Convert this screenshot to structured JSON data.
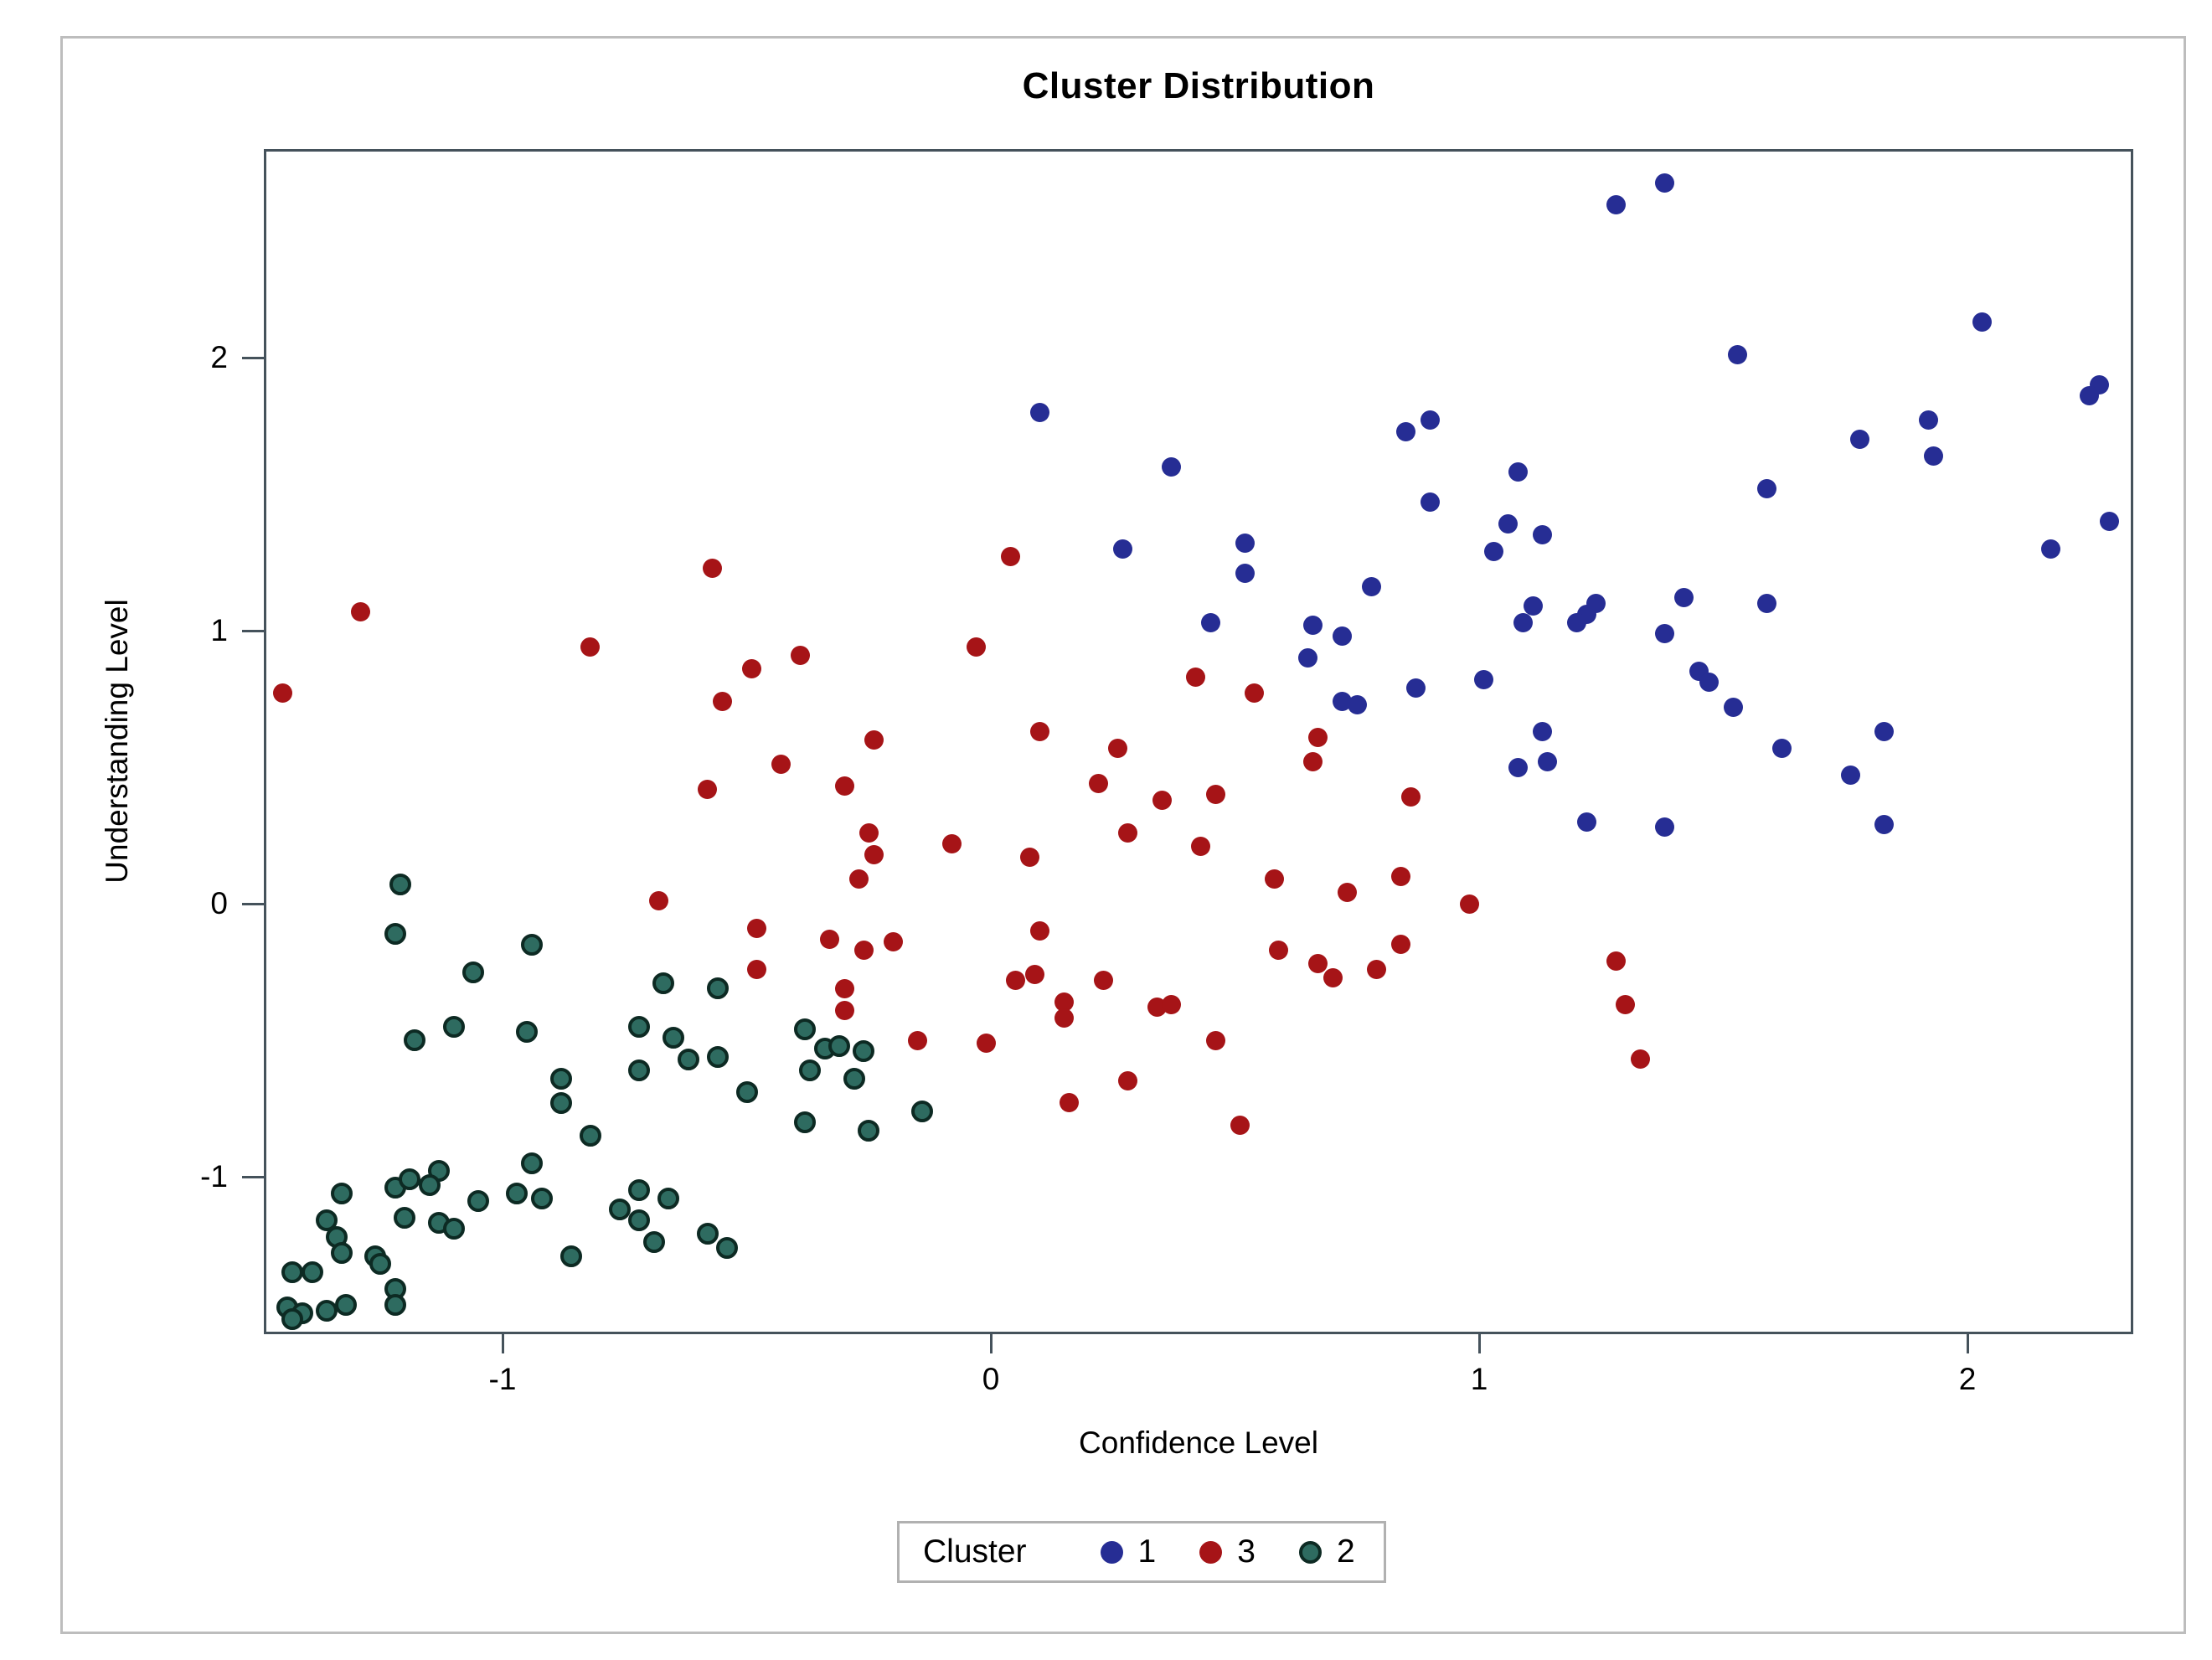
{
  "page": {
    "background": "#ffffff",
    "outer_border_color": "#bdbdbd",
    "frame_color": "#45525B"
  },
  "chart": {
    "title": "Cluster Distribution",
    "xlabel": "Confidence Level",
    "ylabel": "Understanding Level"
  },
  "legend": {
    "title": "Cluster"
  },
  "chart_data": {
    "type": "scatter",
    "title": "Cluster Distribution",
    "xlabel": "Confidence Level",
    "ylabel": "Understanding Level",
    "xlim": [
      -1.48,
      2.35
    ],
    "ylim": [
      -1.59,
      2.76
    ],
    "x_ticks": [
      -1,
      0,
      1,
      2
    ],
    "y_ticks": [
      -1,
      0,
      1,
      2
    ],
    "grid": false,
    "legend_title": "Cluster",
    "legend_position": "bottom-center",
    "marker_diameter_px": 23,
    "series": [
      {
        "name": "1",
        "color": "#262D94",
        "points": [
          [
            0.1,
            1.8
          ],
          [
            0.37,
            1.6
          ],
          [
            0.85,
            1.73
          ],
          [
            0.9,
            1.77
          ],
          [
            0.9,
            1.47
          ],
          [
            0.27,
            1.3
          ],
          [
            0.52,
            1.32
          ],
          [
            0.52,
            1.21
          ],
          [
            0.78,
            1.16
          ],
          [
            0.45,
            1.03
          ],
          [
            0.66,
            1.02
          ],
          [
            0.72,
            0.98
          ],
          [
            0.65,
            0.9
          ],
          [
            0.87,
            0.79
          ],
          [
            1.01,
            0.82
          ],
          [
            1.03,
            1.29
          ],
          [
            0.72,
            0.74
          ],
          [
            0.75,
            0.73
          ],
          [
            1.38,
            2.64
          ],
          [
            1.28,
            2.56
          ],
          [
            2.03,
            2.13
          ],
          [
            1.53,
            2.01
          ],
          [
            2.27,
            1.9
          ],
          [
            2.25,
            1.86
          ],
          [
            1.92,
            1.77
          ],
          [
            1.78,
            1.7
          ],
          [
            1.93,
            1.64
          ],
          [
            1.59,
            1.52
          ],
          [
            1.08,
            1.58
          ],
          [
            1.06,
            1.39
          ],
          [
            1.13,
            1.35
          ],
          [
            2.17,
            1.3
          ],
          [
            2.29,
            1.4
          ],
          [
            1.59,
            1.1
          ],
          [
            1.24,
            1.1
          ],
          [
            1.22,
            1.06
          ],
          [
            1.11,
            1.09
          ],
          [
            1.09,
            1.03
          ],
          [
            1.2,
            1.03
          ],
          [
            1.42,
            1.12
          ],
          [
            1.38,
            0.99
          ],
          [
            1.45,
            0.85
          ],
          [
            1.47,
            0.81
          ],
          [
            1.52,
            0.72
          ],
          [
            1.13,
            0.63
          ],
          [
            1.08,
            0.5
          ],
          [
            1.14,
            0.52
          ],
          [
            1.62,
            0.57
          ],
          [
            1.83,
            0.63
          ],
          [
            1.76,
            0.47
          ],
          [
            1.22,
            0.3
          ],
          [
            1.38,
            0.28
          ],
          [
            1.83,
            0.29
          ]
        ]
      },
      {
        "name": "3",
        "color": "#A61417",
        "points": [
          [
            -1.45,
            0.77
          ],
          [
            -1.29,
            1.07
          ],
          [
            -0.82,
            0.94
          ],
          [
            -0.57,
            1.23
          ],
          [
            -0.49,
            0.86
          ],
          [
            -0.39,
            0.91
          ],
          [
            -0.55,
            0.74
          ],
          [
            0.04,
            1.27
          ],
          [
            -0.03,
            0.94
          ],
          [
            0.42,
            0.83
          ],
          [
            0.54,
            0.77
          ],
          [
            -0.58,
            0.42
          ],
          [
            -0.43,
            0.51
          ],
          [
            -0.3,
            0.43
          ],
          [
            -0.24,
            0.6
          ],
          [
            -0.25,
            0.26
          ],
          [
            -0.24,
            0.18
          ],
          [
            -0.27,
            0.09
          ],
          [
            -0.68,
            0.01
          ],
          [
            -0.48,
            -0.09
          ],
          [
            -0.48,
            -0.24
          ],
          [
            -0.33,
            -0.13
          ],
          [
            -0.26,
            -0.17
          ],
          [
            -0.2,
            -0.14
          ],
          [
            -0.3,
            -0.31
          ],
          [
            -0.3,
            -0.39
          ],
          [
            0.1,
            0.63
          ],
          [
            0.26,
            0.57
          ],
          [
            0.22,
            0.44
          ],
          [
            0.35,
            0.38
          ],
          [
            0.46,
            0.4
          ],
          [
            0.67,
            0.61
          ],
          [
            0.66,
            0.52
          ],
          [
            0.86,
            0.39
          ],
          [
            -0.08,
            0.22
          ],
          [
            0.08,
            0.17
          ],
          [
            0.28,
            0.26
          ],
          [
            0.43,
            0.21
          ],
          [
            0.58,
            0.09
          ],
          [
            0.73,
            0.04
          ],
          [
            0.84,
            0.1
          ],
          [
            0.98,
            0.0
          ],
          [
            0.1,
            -0.1
          ],
          [
            0.59,
            -0.17
          ],
          [
            0.67,
            -0.22
          ],
          [
            0.7,
            -0.27
          ],
          [
            0.79,
            -0.24
          ],
          [
            0.84,
            -0.15
          ],
          [
            0.05,
            -0.28
          ],
          [
            0.09,
            -0.26
          ],
          [
            0.23,
            -0.28
          ],
          [
            0.15,
            -0.36
          ],
          [
            0.15,
            -0.42
          ],
          [
            0.34,
            -0.38
          ],
          [
            0.37,
            -0.37
          ],
          [
            -0.15,
            -0.5
          ],
          [
            -0.01,
            -0.51
          ],
          [
            0.46,
            -0.5
          ],
          [
            0.28,
            -0.65
          ],
          [
            0.16,
            -0.73
          ],
          [
            0.51,
            -0.81
          ],
          [
            1.28,
            -0.21
          ],
          [
            1.3,
            -0.37
          ],
          [
            1.33,
            -0.57
          ]
        ]
      },
      {
        "name": "2",
        "color": "#2E6B60",
        "outline": "#0D2A23",
        "points": [
          [
            -1.21,
            0.07
          ],
          [
            -1.22,
            -0.11
          ],
          [
            -0.94,
            -0.15
          ],
          [
            -1.06,
            -0.25
          ],
          [
            -0.67,
            -0.29
          ],
          [
            -0.56,
            -0.31
          ],
          [
            -1.1,
            -0.45
          ],
          [
            -1.18,
            -0.5
          ],
          [
            -0.95,
            -0.47
          ],
          [
            -0.72,
            -0.45
          ],
          [
            -0.72,
            -0.61
          ],
          [
            -0.65,
            -0.49
          ],
          [
            -0.62,
            -0.57
          ],
          [
            -0.56,
            -0.56
          ],
          [
            -0.88,
            -0.64
          ],
          [
            -0.88,
            -0.73
          ],
          [
            -0.5,
            -0.69
          ],
          [
            -0.38,
            -0.46
          ],
          [
            -0.34,
            -0.53
          ],
          [
            -0.31,
            -0.52
          ],
          [
            -0.26,
            -0.54
          ],
          [
            -0.37,
            -0.61
          ],
          [
            -0.28,
            -0.64
          ],
          [
            -0.38,
            -0.8
          ],
          [
            -0.25,
            -0.83
          ],
          [
            -0.82,
            -0.85
          ],
          [
            -0.94,
            -0.95
          ],
          [
            -1.33,
            -1.06
          ],
          [
            -1.22,
            -1.04
          ],
          [
            -1.19,
            -1.01
          ],
          [
            -1.13,
            -0.98
          ],
          [
            -1.15,
            -1.03
          ],
          [
            -1.05,
            -1.09
          ],
          [
            -0.97,
            -1.06
          ],
          [
            -0.92,
            -1.08
          ],
          [
            -1.2,
            -1.15
          ],
          [
            -1.13,
            -1.17
          ],
          [
            -1.1,
            -1.19
          ],
          [
            -0.86,
            -1.29
          ],
          [
            -0.72,
            -1.05
          ],
          [
            -0.76,
            -1.12
          ],
          [
            -0.72,
            -1.16
          ],
          [
            -0.66,
            -1.08
          ],
          [
            -0.69,
            -1.24
          ],
          [
            -0.58,
            -1.21
          ],
          [
            -0.54,
            -1.26
          ],
          [
            -1.43,
            -1.35
          ],
          [
            -1.39,
            -1.35
          ],
          [
            -1.34,
            -1.22
          ],
          [
            -1.33,
            -1.28
          ],
          [
            -1.36,
            -1.16
          ],
          [
            -1.26,
            -1.29
          ],
          [
            -1.25,
            -1.32
          ],
          [
            -1.22,
            -1.41
          ],
          [
            -1.22,
            -1.47
          ],
          [
            -1.44,
            -1.48
          ],
          [
            -1.41,
            -1.5
          ],
          [
            -1.36,
            -1.49
          ],
          [
            -1.32,
            -1.47
          ],
          [
            -1.43,
            -1.52
          ],
          [
            -0.14,
            -0.76
          ]
        ]
      }
    ]
  }
}
